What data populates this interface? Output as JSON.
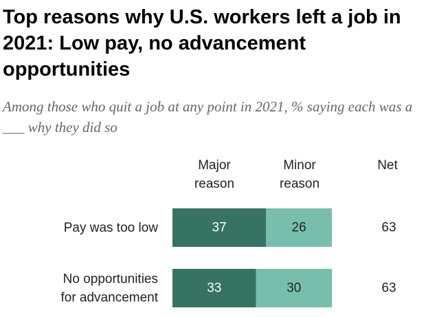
{
  "title": "Top reasons why U.S. workers left a job in 2021: Low pay, no advancement opportunities",
  "subtitle": "Among those who quit a job at any point in 2021, % saying each was a ___ why they did so",
  "column_headers": {
    "major": "Major reason",
    "minor": "Minor reason",
    "net": "Net"
  },
  "colors": {
    "major": "#367363",
    "minor": "#77bfac",
    "major_text": "#ffffff",
    "minor_text": "#222222"
  },
  "chart_data": {
    "type": "bar",
    "orientation": "horizontal",
    "stacked": true,
    "categories": [
      "Pay was too low",
      "No opportunities for advancement"
    ],
    "category_lines": [
      [
        "Pay was too low"
      ],
      [
        "No opportunities",
        "for advancement"
      ]
    ],
    "series": [
      {
        "name": "Major reason",
        "values": [
          37,
          33
        ]
      },
      {
        "name": "Minor reason",
        "values": [
          26,
          30
        ]
      }
    ],
    "net": [
      63,
      63
    ],
    "xlim": [
      0,
      63
    ]
  }
}
